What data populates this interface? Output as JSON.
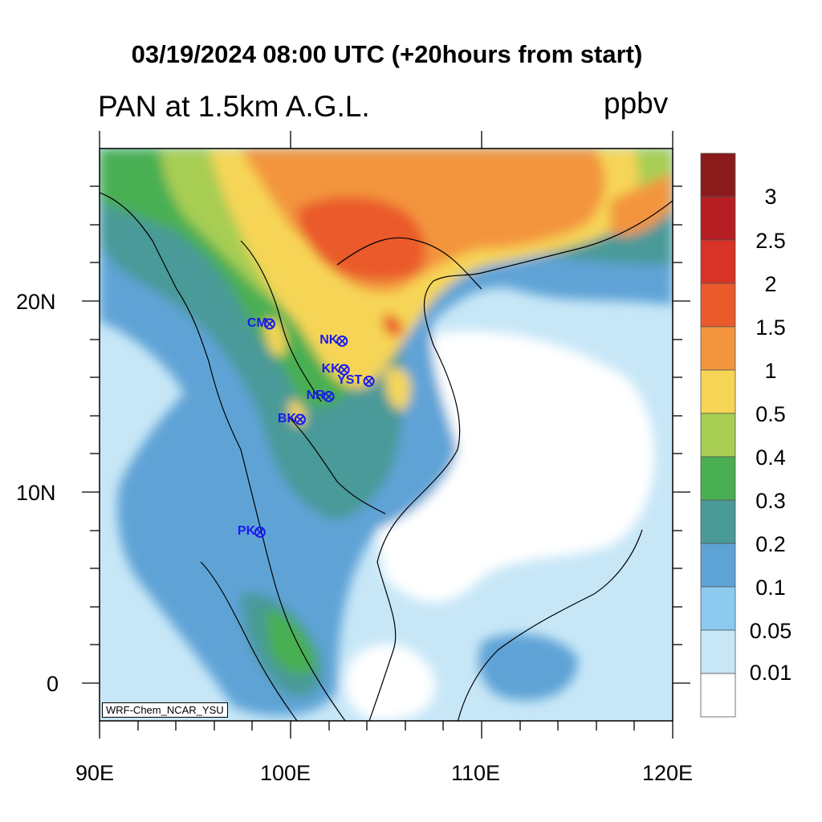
{
  "title": "03/19/2024 08:00 UTC (+20hours from start)",
  "left_title": "PAN at 1.5km A.G.L.",
  "units": "ppbv",
  "credit": "WRF-Chem_NCAR_YSU",
  "axes": {
    "lat_labels": [
      "20N",
      "10N",
      "0"
    ],
    "lon_labels": [
      "90E",
      "100E",
      "110E",
      "120E"
    ]
  },
  "colorbar": {
    "labels": [
      "3",
      "2.5",
      "2",
      "1.5",
      "1",
      "0.5",
      "0.4",
      "0.3",
      "0.2",
      "0.1",
      "0.05",
      "0.01"
    ],
    "colors": [
      "#8b1a1a",
      "#b51e22",
      "#d93328",
      "#ea5a2b",
      "#f3953e",
      "#f6d556",
      "#a7cd52",
      "#4aaf52",
      "#4a9a98",
      "#5ea3d6",
      "#8ccaf0",
      "#c7e7f7",
      "#ffffff"
    ]
  },
  "stations": [
    {
      "code": "CM",
      "lon": 98.9,
      "lat": 18.8
    },
    {
      "code": "NK",
      "lon": 102.7,
      "lat": 17.9
    },
    {
      "code": "KK",
      "lon": 102.8,
      "lat": 16.4
    },
    {
      "code": "YST",
      "lon": 104.1,
      "lat": 15.8
    },
    {
      "code": "NR",
      "lon": 102.0,
      "lat": 15.0
    },
    {
      "code": "BK",
      "lon": 100.5,
      "lat": 13.8
    },
    {
      "code": "PK",
      "lon": 98.4,
      "lat": 7.9
    }
  ]
}
